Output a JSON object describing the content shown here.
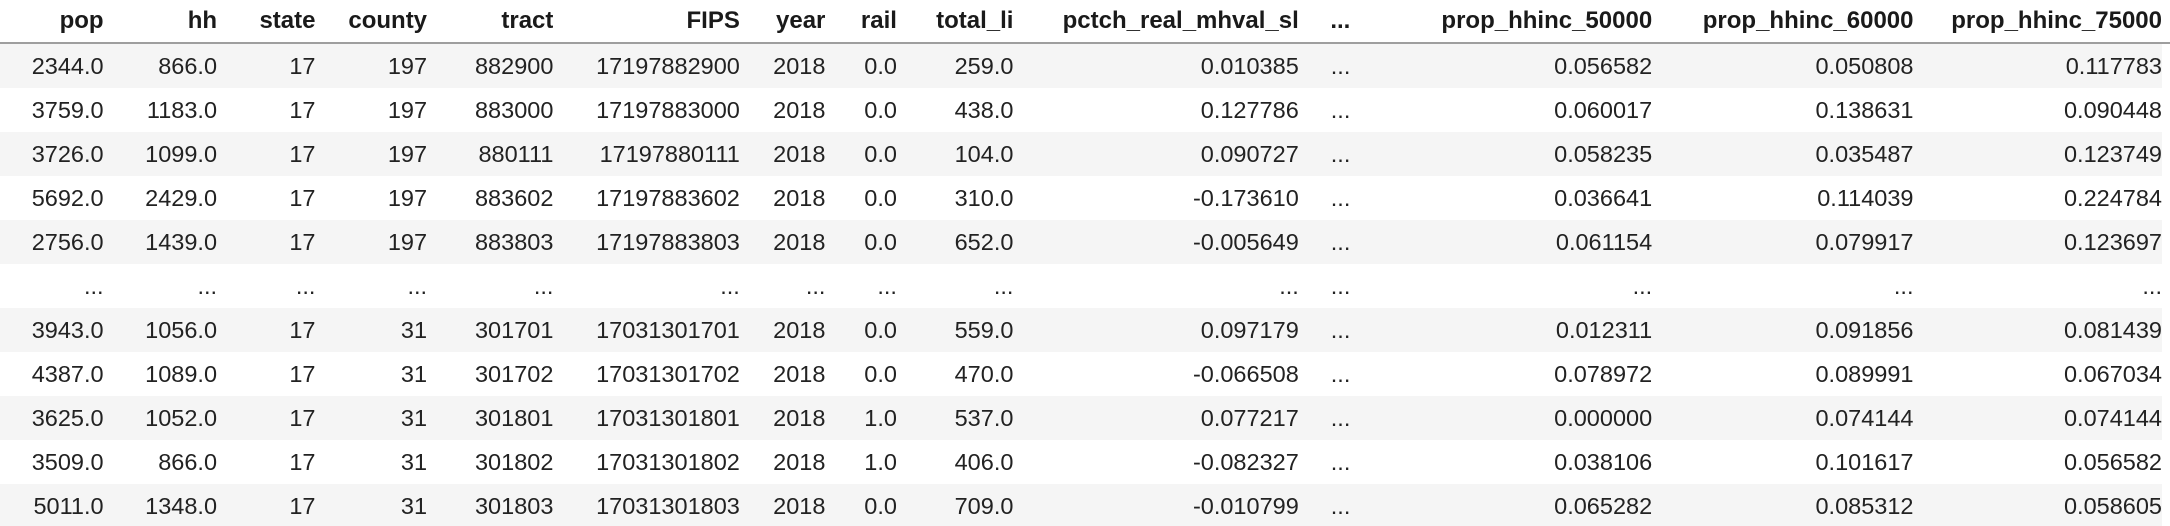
{
  "table": {
    "columns": [
      "pop",
      "hh",
      "state",
      "county",
      "tract",
      "FIPS",
      "year",
      "rail",
      "total_li",
      "pctch_real_mhval_sl",
      "...",
      "prop_hhinc_50000",
      "prop_hhinc_60000",
      "prop_hhinc_75000"
    ],
    "rows": [
      [
        "2344.0",
        "866.0",
        "17",
        "197",
        "882900",
        "17197882900",
        "2018",
        "0.0",
        "259.0",
        "0.010385",
        "...",
        "0.056582",
        "0.050808",
        "0.117783"
      ],
      [
        "3759.0",
        "1183.0",
        "17",
        "197",
        "883000",
        "17197883000",
        "2018",
        "0.0",
        "438.0",
        "0.127786",
        "...",
        "0.060017",
        "0.138631",
        "0.090448"
      ],
      [
        "3726.0",
        "1099.0",
        "17",
        "197",
        "880111",
        "17197880111",
        "2018",
        "0.0",
        "104.0",
        "0.090727",
        "...",
        "0.058235",
        "0.035487",
        "0.123749"
      ],
      [
        "5692.0",
        "2429.0",
        "17",
        "197",
        "883602",
        "17197883602",
        "2018",
        "0.0",
        "310.0",
        "-0.173610",
        "...",
        "0.036641",
        "0.114039",
        "0.224784"
      ],
      [
        "2756.0",
        "1439.0",
        "17",
        "197",
        "883803",
        "17197883803",
        "2018",
        "0.0",
        "652.0",
        "-0.005649",
        "...",
        "0.061154",
        "0.079917",
        "0.123697"
      ],
      [
        "...",
        "...",
        "...",
        "...",
        "...",
        "...",
        "...",
        "...",
        "...",
        "...",
        "...",
        "...",
        "...",
        "..."
      ],
      [
        "3943.0",
        "1056.0",
        "17",
        "31",
        "301701",
        "17031301701",
        "2018",
        "0.0",
        "559.0",
        "0.097179",
        "...",
        "0.012311",
        "0.091856",
        "0.081439"
      ],
      [
        "4387.0",
        "1089.0",
        "17",
        "31",
        "301702",
        "17031301702",
        "2018",
        "0.0",
        "470.0",
        "-0.066508",
        "...",
        "0.078972",
        "0.089991",
        "0.067034"
      ],
      [
        "3625.0",
        "1052.0",
        "17",
        "31",
        "301801",
        "17031301801",
        "2018",
        "1.0",
        "537.0",
        "0.077217",
        "...",
        "0.000000",
        "0.074144",
        "0.074144"
      ],
      [
        "3509.0",
        "866.0",
        "17",
        "31",
        "301802",
        "17031301802",
        "2018",
        "1.0",
        "406.0",
        "-0.082327",
        "...",
        "0.038106",
        "0.101617",
        "0.056582"
      ],
      [
        "5011.0",
        "1348.0",
        "17",
        "31",
        "301803",
        "17031301803",
        "2018",
        "0.0",
        "709.0",
        "-0.010799",
        "...",
        "0.065282",
        "0.085312",
        "0.058605"
      ]
    ]
  }
}
